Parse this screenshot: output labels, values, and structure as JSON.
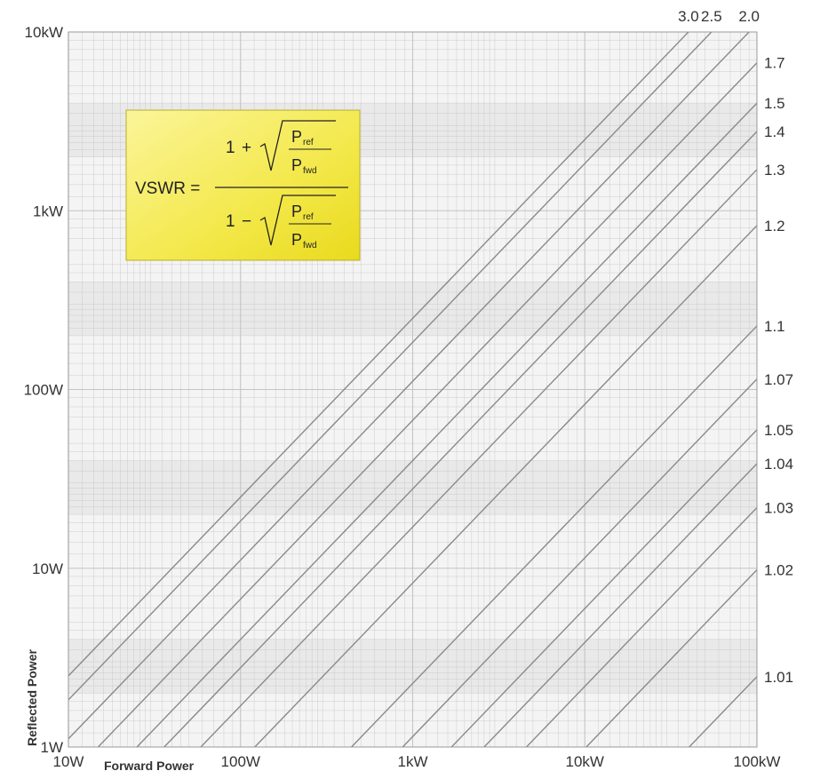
{
  "chart_data": {
    "type": "line",
    "xlabel": "Forward Power",
    "ylabel": "Reflected Power",
    "x_scale": "log",
    "y_scale": "log",
    "x_range_watts": [
      10,
      100000
    ],
    "y_range_watts": [
      1,
      10000
    ],
    "x_ticks": [
      {
        "value": 10,
        "label": "10W"
      },
      {
        "value": 100,
        "label": "100W"
      },
      {
        "value": 1000,
        "label": "1kW"
      },
      {
        "value": 10000,
        "label": "10kW"
      },
      {
        "value": 100000,
        "label": "100kW"
      }
    ],
    "y_ticks": [
      {
        "value": 1,
        "label": "1W"
      },
      {
        "value": 10,
        "label": "10W"
      },
      {
        "value": 100,
        "label": "100W"
      },
      {
        "value": 1000,
        "label": "1kW"
      },
      {
        "value": 10000,
        "label": "10kW"
      }
    ],
    "grid": true,
    "series": [
      {
        "name": "1.01",
        "vswr": 1.01
      },
      {
        "name": "1.02",
        "vswr": 1.02
      },
      {
        "name": "1.03",
        "vswr": 1.03
      },
      {
        "name": "1.04",
        "vswr": 1.04
      },
      {
        "name": "1.05",
        "vswr": 1.05
      },
      {
        "name": "1.07",
        "vswr": 1.07
      },
      {
        "name": "1.1",
        "vswr": 1.1
      },
      {
        "name": "1.2",
        "vswr": 1.2
      },
      {
        "name": "1.3",
        "vswr": 1.3
      },
      {
        "name": "1.4",
        "vswr": 1.4
      },
      {
        "name": "1.5",
        "vswr": 1.5
      },
      {
        "name": "1.7",
        "vswr": 1.7
      },
      {
        "name": "2.0",
        "vswr": 2.0
      },
      {
        "name": "2.5",
        "vswr": 2.5
      },
      {
        "name": "3.0",
        "vswr": 3.0
      }
    ],
    "annotation": {
      "lhs": "VSWR =",
      "one": "1",
      "plus": "+",
      "minus": "−",
      "p_ref_main": "P",
      "p_ref_sub": "ref",
      "p_fwd_main": "P",
      "p_fwd_sub": "fwd",
      "box_color": "#f3e84a"
    },
    "colors": {
      "grid": "#c4c4c4",
      "lines": "#8a8a8a",
      "text": "#333333"
    }
  }
}
